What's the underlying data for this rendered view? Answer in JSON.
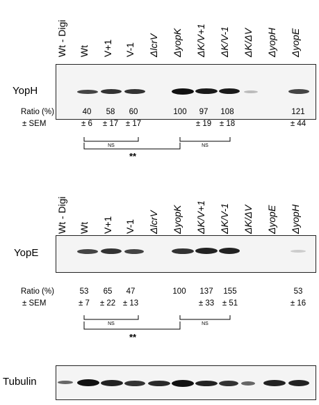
{
  "panel1": {
    "lanes": [
      "Wt - Digi",
      "Wt",
      "V+1",
      "V-1",
      "ΔlcrV",
      "ΔyopK",
      "ΔK/V+1",
      "ΔK/V-1",
      "ΔK/ΔV",
      "ΔyopH",
      "ΔyopE"
    ],
    "protein": "YopH",
    "ratio_label": "Ratio (%)",
    "sem_label": "± SEM",
    "ratios": [
      "40",
      "58",
      "60",
      "100",
      "97",
      "108",
      "121"
    ],
    "sems": [
      "± 6",
      "± 17",
      "± 17",
      "± 19",
      "± 18",
      "± 44"
    ],
    "ns1": "NS",
    "ns2": "NS",
    "sig": "**"
  },
  "panel2": {
    "lanes": [
      "Wt - Digi",
      "Wt",
      "V+1",
      "V-1",
      "ΔlcrV",
      "ΔyopK",
      "ΔK/V+1",
      "ΔK/V-1",
      "ΔK/ΔV",
      "ΔyopE",
      "ΔyopH"
    ],
    "protein": "YopE",
    "ratio_label": "Ratio (%)",
    "sem_label": "± SEM",
    "ratios": [
      "53",
      "65",
      "47",
      "100",
      "137",
      "155",
      "53"
    ],
    "sems": [
      "± 7",
      "± 22",
      "± 13",
      "± 33",
      "± 51",
      "± 16"
    ],
    "ns1": "NS",
    "ns2": "NS",
    "sig": "**"
  },
  "panel3": {
    "protein": "Tubulin"
  },
  "colors": {
    "band": "#1a1a1a",
    "blot_bg": "#f4f4f4"
  }
}
